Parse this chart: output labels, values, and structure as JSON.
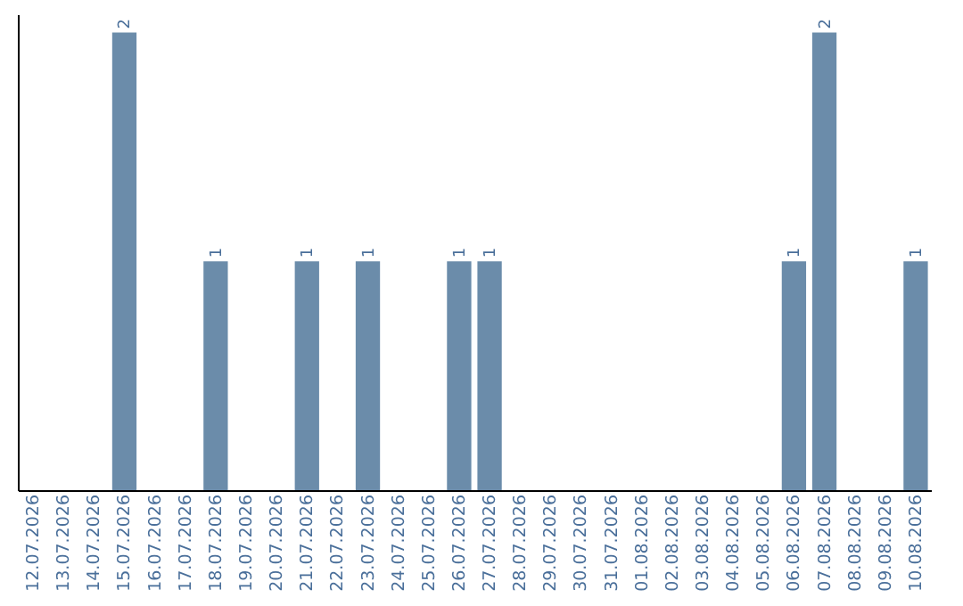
{
  "chart_data": {
    "type": "bar",
    "categories": [
      "12.07.2026",
      "13.07.2026",
      "14.07.2026",
      "15.07.2026",
      "16.07.2026",
      "17.07.2026",
      "18.07.2026",
      "19.07.2026",
      "20.07.2026",
      "21.07.2026",
      "22.07.2026",
      "23.07.2026",
      "24.07.2026",
      "25.07.2026",
      "26.07.2026",
      "27.07.2026",
      "28.07.2026",
      "29.07.2026",
      "30.07.2026",
      "31.07.2026",
      "01.08.2026",
      "02.08.2026",
      "03.08.2026",
      "04.08.2026",
      "05.08.2026",
      "06.08.2026",
      "07.08.2026",
      "08.08.2026",
      "09.08.2026",
      "10.08.2026"
    ],
    "values": [
      0,
      0,
      0,
      2,
      0,
      0,
      1,
      0,
      0,
      1,
      0,
      1,
      0,
      0,
      1,
      1,
      0,
      0,
      0,
      0,
      0,
      0,
      0,
      0,
      0,
      1,
      2,
      0,
      0,
      1
    ],
    "value_labels": [
      null,
      null,
      null,
      "2",
      null,
      null,
      "1",
      null,
      null,
      "1",
      null,
      "1",
      null,
      null,
      "1",
      "1",
      null,
      null,
      null,
      null,
      null,
      null,
      null,
      null,
      null,
      "1",
      "2",
      null,
      null,
      "1"
    ],
    "color": "#6b8caa"
  }
}
